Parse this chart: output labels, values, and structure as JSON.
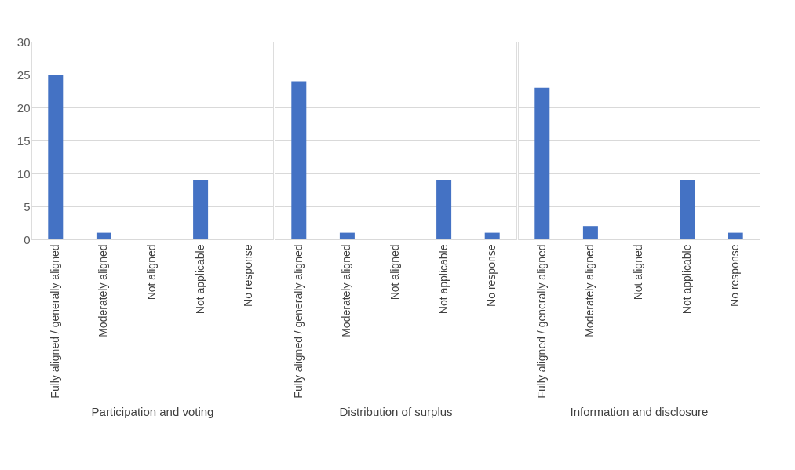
{
  "chart_data": [
    {
      "type": "bar",
      "xlabel": "Participation and voting",
      "categories": [
        "Fully aligned / generally aligned",
        "Moderately aligned",
        "Not aligned",
        "Not applicable",
        "No response"
      ],
      "values": [
        25,
        1,
        0,
        9,
        0
      ],
      "color": "#4472c4",
      "ylim": [
        0,
        30
      ],
      "yticks": [
        0,
        5,
        10,
        15,
        20,
        25,
        30
      ],
      "grid": "y"
    },
    {
      "type": "bar",
      "xlabel": "Distribution of surplus",
      "categories": [
        "Fully aligned / generally aligned",
        "Moderately aligned",
        "Not aligned",
        "Not applicable",
        "No response"
      ],
      "values": [
        24,
        1,
        0,
        9,
        1
      ],
      "color": "#4472c4",
      "ylim": [
        0,
        30
      ],
      "yticks": [
        0,
        5,
        10,
        15,
        20,
        25,
        30
      ],
      "grid": "y",
      "tick_labels": "x"
    },
    {
      "type": "bar",
      "xlabel": "Information and disclosure",
      "categories": [
        "Fully aligned / generally aligned",
        "Moderately aligned",
        "Not aligned",
        "Not applicable",
        "No response"
      ],
      "values": [
        23,
        2,
        0,
        9,
        1
      ],
      "color": "#4472c4",
      "ylim": [
        0,
        30
      ],
      "yticks": [
        0,
        5,
        10,
        15,
        20,
        25,
        30
      ],
      "grid": "y",
      "tick_labels": "x"
    }
  ]
}
